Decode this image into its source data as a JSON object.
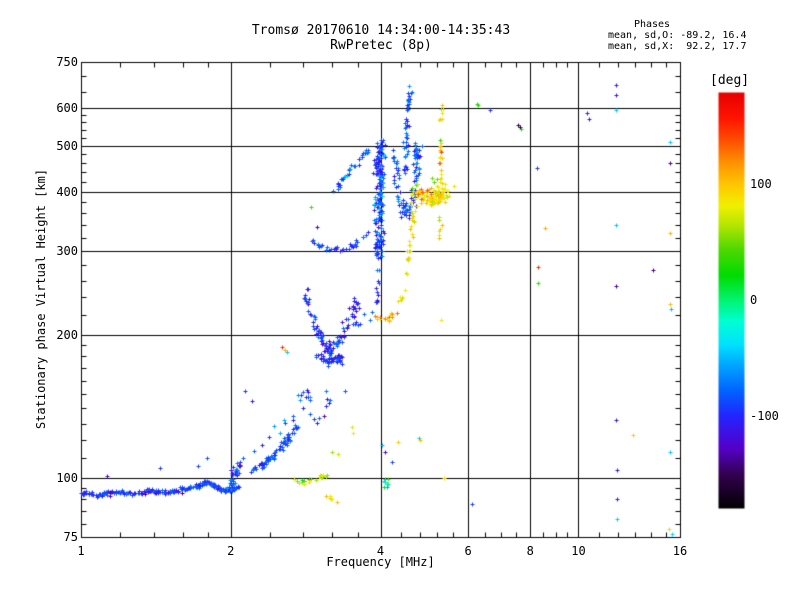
{
  "chart_data": {
    "type": "scatter",
    "title": "Tromsø 20170610 14:34:00-14:35:43",
    "subtitle": "RwPretec (8p)",
    "annotation": {
      "heading": "Phases",
      "o_stats": "mean, sd,O: -89.2, 16.4",
      "x_stats": "mean, sd,X:  92.2, 17.7"
    },
    "xlabel": "Frequency [MHz]",
    "ylabel": "Stationary phase Virtual Height [km]",
    "x_scale": "log",
    "y_scale": "log",
    "xlim": [
      1,
      16
    ],
    "ylim": [
      75,
      750
    ],
    "x_ticks": [
      1,
      2,
      4,
      6,
      8,
      10,
      16
    ],
    "x_minor_ticks": [
      1.2,
      1.4,
      1.6,
      1.8,
      2.4,
      2.8,
      3.2,
      3.6,
      4.4,
      4.8,
      5.2,
      5.6,
      6.5,
      7,
      7.5,
      8.5,
      9,
      9.5,
      11,
      12,
      13,
      14,
      15
    ],
    "y_ticks": [
      75,
      100,
      200,
      300,
      400,
      500,
      600,
      750
    ],
    "y_minor_ticks": [
      80,
      85,
      90,
      95,
      110,
      120,
      130,
      140,
      150,
      160,
      170,
      180,
      190,
      220,
      240,
      260,
      280,
      320,
      340,
      360,
      380,
      420,
      440,
      460,
      480,
      520,
      540,
      560,
      580,
      650,
      700
    ],
    "x_gridlines": [
      2,
      4,
      6,
      8,
      10
    ],
    "y_gridlines": [
      100,
      200,
      300,
      400,
      500,
      600
    ],
    "grid": true,
    "marker": "plus",
    "frame_color": "#000000",
    "colorbar": {
      "label": "[deg]",
      "min": -180,
      "max": 180,
      "ticks": [
        100,
        0,
        -100
      ],
      "stops": [
        [
          -180,
          "#000000"
        ],
        [
          -152,
          "#31004a"
        ],
        [
          -128,
          "#5600c8"
        ],
        [
          -100,
          "#2424ff"
        ],
        [
          -78,
          "#0064ff"
        ],
        [
          -56,
          "#00a6ff"
        ],
        [
          -38,
          "#00e2ff"
        ],
        [
          -18,
          "#00ffd2"
        ],
        [
          0,
          "#00f573"
        ],
        [
          22,
          "#00dc00"
        ],
        [
          45,
          "#52d800"
        ],
        [
          65,
          "#b4e600"
        ],
        [
          82,
          "#f0f000"
        ],
        [
          100,
          "#ffc800"
        ],
        [
          118,
          "#ff9600"
        ],
        [
          138,
          "#ff5000"
        ],
        [
          158,
          "#ff1400"
        ],
        [
          180,
          "#e80000"
        ]
      ]
    },
    "clusters": [
      {
        "name": "e-region-trace",
        "path": [
          [
            1.0,
            93
          ],
          [
            1.08,
            92
          ],
          [
            1.18,
            93.5
          ],
          [
            1.28,
            92.5
          ],
          [
            1.38,
            94
          ],
          [
            1.5,
            93
          ],
          [
            1.62,
            95
          ],
          [
            1.72,
            96
          ],
          [
            1.8,
            98.5
          ],
          [
            1.88,
            95
          ],
          [
            1.97,
            94
          ],
          [
            2.07,
            95.5
          ]
        ],
        "n": 270,
        "jf": 0.003,
        "jh": 0.004,
        "phase": [
          -108,
          -72
        ]
      },
      {
        "name": "e-trace-dark",
        "path": [
          [
            1.05,
            92.5
          ],
          [
            1.45,
            93
          ],
          [
            1.95,
            94.5
          ]
        ],
        "n": 10,
        "jf": 0.01,
        "jh": 0.005,
        "phase": [
          -145,
          -108
        ]
      },
      {
        "name": "f2-knot",
        "path": [
          [
            1.98,
            96
          ],
          [
            2.02,
            100
          ],
          [
            2.06,
            105
          ],
          [
            2.1,
            109
          ]
        ],
        "n": 38,
        "jf": 0.008,
        "jh": 0.015,
        "phase": [
          -122,
          -55
        ]
      },
      {
        "name": "es-ramp",
        "path": [
          [
            2.2,
            103
          ],
          [
            2.33,
            107
          ],
          [
            2.47,
            113
          ],
          [
            2.6,
            121
          ],
          [
            2.72,
            128
          ]
        ],
        "n": 75,
        "jf": 0.006,
        "jh": 0.007,
        "phase": [
          -105,
          -70
        ]
      },
      {
        "name": "ramp-halo",
        "path": [
          [
            2.22,
            112
          ],
          [
            2.45,
            124
          ],
          [
            2.68,
            140
          ],
          [
            2.85,
            152
          ]
        ],
        "n": 20,
        "jf": 0.015,
        "jh": 0.02,
        "phase": [
          -118,
          -52
        ]
      },
      {
        "name": "green-strip-100km",
        "path": [
          [
            2.6,
            99
          ],
          [
            2.8,
            98
          ],
          [
            3.0,
            100
          ],
          [
            3.12,
            101
          ]
        ],
        "n": 24,
        "jf": 0.01,
        "jh": 0.006,
        "phase": [
          15,
          95
        ]
      },
      {
        "name": "under-strip-warm",
        "path": [
          [
            3.1,
            93
          ],
          [
            3.22,
            89
          ],
          [
            3.35,
            85
          ]
        ],
        "n": 6,
        "jf": 0.006,
        "jh": 0.008,
        "phase": [
          75,
          115
        ]
      },
      {
        "name": "mid-sparse",
        "path": [
          [
            2.88,
            131
          ],
          [
            3.1,
            141
          ],
          [
            3.32,
            151
          ]
        ],
        "n": 11,
        "jf": 0.02,
        "jh": 0.025,
        "phase": [
          -130,
          -60
        ]
      },
      {
        "name": "v-left-edge",
        "path": [
          [
            2.8,
            248
          ],
          [
            2.88,
            226
          ],
          [
            2.97,
            206
          ],
          [
            3.07,
            192
          ],
          [
            3.16,
            183
          ]
        ],
        "n": 50,
        "jf": 0.008,
        "jh": 0.012,
        "phase": [
          -126,
          -70
        ]
      },
      {
        "name": "v-right-edge",
        "path": [
          [
            3.16,
            183
          ],
          [
            3.3,
            194
          ],
          [
            3.42,
            208
          ],
          [
            3.52,
            224
          ],
          [
            3.6,
            240
          ]
        ],
        "n": 50,
        "jf": 0.008,
        "jh": 0.012,
        "phase": [
          -126,
          -70
        ]
      },
      {
        "name": "v-bottom",
        "path": [
          [
            3.02,
            180
          ],
          [
            3.17,
            176
          ],
          [
            3.32,
            180
          ]
        ],
        "n": 42,
        "jf": 0.014,
        "jh": 0.012,
        "phase": [
          -120,
          -70
        ]
      },
      {
        "name": "arc-300km",
        "path": [
          [
            2.92,
            316
          ],
          [
            3.08,
            305
          ],
          [
            3.28,
            301
          ],
          [
            3.46,
            305
          ],
          [
            3.62,
            315
          ],
          [
            3.78,
            334
          ]
        ],
        "n": 36,
        "jf": 0.007,
        "jh": 0.006,
        "phase": [
          -112,
          -72
        ]
      },
      {
        "name": "below-arc",
        "path": [
          [
            3.52,
            210
          ],
          [
            3.68,
            215
          ],
          [
            3.85,
            222
          ]
        ],
        "n": 8,
        "jf": 0.012,
        "jh": 0.01,
        "phase": [
          -100,
          -70
        ]
      },
      {
        "name": "diag-chain",
        "path": [
          [
            3.18,
            400
          ],
          [
            3.3,
            415
          ],
          [
            3.44,
            438
          ],
          [
            3.57,
            458
          ],
          [
            3.69,
            477
          ],
          [
            3.77,
            490
          ]
        ],
        "n": 30,
        "jf": 0.005,
        "jh": 0.007,
        "phase": [
          -110,
          -68
        ]
      },
      {
        "name": "chain-cyan",
        "path": [
          [
            3.35,
            425
          ],
          [
            3.6,
            462
          ]
        ],
        "n": 4,
        "jf": 0.006,
        "jh": 0.008,
        "phase": [
          -60,
          -40
        ]
      },
      {
        "name": "o-column-main",
        "path": [
          [
            3.96,
            290
          ],
          [
            3.96,
            325
          ],
          [
            3.97,
            362
          ],
          [
            3.98,
            400
          ],
          [
            3.98,
            440
          ],
          [
            3.99,
            472
          ],
          [
            4.0,
            505
          ]
        ],
        "n": 175,
        "jf": 0.01,
        "jh": 0.012,
        "phase": [
          -118,
          -62
        ]
      },
      {
        "name": "o-column-cyan",
        "path": [
          [
            3.97,
            320
          ],
          [
            3.98,
            400
          ],
          [
            3.99,
            480
          ]
        ],
        "n": 12,
        "jf": 0.009,
        "jh": 0.012,
        "phase": [
          -60,
          -36
        ]
      },
      {
        "name": "o-column-below",
        "path": [
          [
            3.93,
            230
          ],
          [
            3.95,
            255
          ],
          [
            3.96,
            280
          ]
        ],
        "n": 13,
        "jf": 0.006,
        "jh": 0.012,
        "phase": [
          -136,
          -70
        ]
      },
      {
        "name": "o-lobe-u",
        "path": [
          [
            4.28,
            488
          ],
          [
            4.31,
            440
          ],
          [
            4.35,
            402
          ],
          [
            4.41,
            373
          ],
          [
            4.49,
            358
          ],
          [
            4.58,
            368
          ],
          [
            4.66,
            394
          ],
          [
            4.72,
            432
          ],
          [
            4.75,
            475
          ],
          [
            4.76,
            496
          ]
        ],
        "n": 95,
        "jf": 0.008,
        "jh": 0.012,
        "phase": [
          -115,
          -60
        ]
      },
      {
        "name": "o-upper-column",
        "path": [
          [
            4.46,
            438
          ],
          [
            4.49,
            478
          ],
          [
            4.51,
            520
          ],
          [
            4.53,
            562
          ],
          [
            4.55,
            602
          ],
          [
            4.56,
            638
          ],
          [
            4.57,
            658
          ]
        ],
        "n": 46,
        "jf": 0.005,
        "jh": 0.008,
        "phase": [
          -112,
          -58
        ]
      },
      {
        "name": "x-hook",
        "path": [
          [
            3.87,
            222
          ],
          [
            3.95,
            217
          ],
          [
            4.05,
            215
          ],
          [
            4.15,
            216
          ],
          [
            4.25,
            220
          ],
          [
            4.33,
            226
          ]
        ],
        "n": 16,
        "jf": 0.006,
        "jh": 0.006,
        "phase": [
          80,
          132
        ]
      },
      {
        "name": "x-rise",
        "path": [
          [
            4.37,
            232
          ],
          [
            4.45,
            250
          ],
          [
            4.52,
            275
          ],
          [
            4.57,
            305
          ],
          [
            4.61,
            340
          ],
          [
            4.65,
            360
          ]
        ],
        "n": 30,
        "jf": 0.004,
        "jh": 0.008,
        "phase": [
          62,
          108
        ]
      },
      {
        "name": "x-vertical",
        "path": [
          [
            5.25,
            300
          ],
          [
            5.26,
            355
          ],
          [
            5.27,
            415
          ],
          [
            5.28,
            468
          ],
          [
            5.29,
            520
          ],
          [
            5.3,
            565
          ],
          [
            5.31,
            605
          ]
        ],
        "n": 34,
        "jf": 0.004,
        "jh": 0.01,
        "phase": [
          58,
          112
        ]
      },
      {
        "name": "x-vertical-hot",
        "path": [
          [
            5.27,
            455
          ],
          [
            5.28,
            482
          ]
        ],
        "n": 3,
        "jf": 0.004,
        "jh": 0.006,
        "phase": [
          120,
          148
        ]
      },
      {
        "name": "x-blob",
        "path": [
          [
            4.68,
            385
          ],
          [
            4.82,
            396
          ],
          [
            4.98,
            390
          ],
          [
            5.12,
            386
          ],
          [
            5.25,
            396
          ],
          [
            5.38,
            402
          ]
        ],
        "n": 105,
        "jf": 0.013,
        "jh": 0.02,
        "phase": [
          66,
          112
        ]
      },
      {
        "name": "x-blob-hot",
        "path": [
          [
            4.72,
            392
          ],
          [
            4.95,
            408
          ],
          [
            5.15,
            398
          ]
        ],
        "n": 6,
        "jf": 0.012,
        "jh": 0.015,
        "phase": [
          118,
          152
        ]
      },
      {
        "name": "x-blob-green",
        "path": [
          [
            4.64,
            416
          ],
          [
            4.9,
            420
          ],
          [
            5.24,
            428
          ]
        ],
        "n": 5,
        "jf": 0.01,
        "jh": 0.012,
        "phase": [
          25,
          55
        ]
      },
      {
        "name": "f4-bottom-knot",
        "path": [
          [
            4.05,
            96
          ],
          [
            4.1,
            98
          ],
          [
            4.16,
            97
          ]
        ],
        "n": 10,
        "jf": 0.008,
        "jh": 0.01,
        "phase": [
          -70,
          55
        ]
      }
    ],
    "points": [
      [
        1.13,
        101,
        -130
      ],
      [
        1.44,
        105,
        -95
      ],
      [
        1.72,
        106,
        -90
      ],
      [
        1.79,
        110,
        -85
      ],
      [
        2.14,
        152,
        -95
      ],
      [
        2.21,
        145,
        -105
      ],
      [
        2.54,
        188,
        150
      ],
      [
        2.57,
        186,
        110
      ],
      [
        2.6,
        184,
        -45
      ],
      [
        2.9,
        372,
        40
      ],
      [
        2.98,
        337,
        -135
      ],
      [
        3.2,
        113,
        60
      ],
      [
        3.28,
        112,
        70
      ],
      [
        3.5,
        128,
        75
      ],
      [
        3.52,
        124,
        85
      ],
      [
        4.03,
        117,
        -50
      ],
      [
        4.08,
        113,
        -125
      ],
      [
        4.22,
        108,
        -90
      ],
      [
        4.34,
        119,
        100
      ],
      [
        4.77,
        121,
        -45
      ],
      [
        4.81,
        120,
        105
      ],
      [
        5.37,
        100,
        95
      ],
      [
        5.3,
        215,
        85
      ],
      [
        5.27,
        513,
        35
      ],
      [
        6.1,
        88,
        -90
      ],
      [
        6.26,
        613,
        35
      ],
      [
        6.28,
        610,
        30
      ],
      [
        6.65,
        593,
        -95
      ],
      [
        7.55,
        552,
        -150
      ],
      [
        7.62,
        547,
        -165
      ],
      [
        7.68,
        542,
        28
      ],
      [
        8.26,
        448,
        -95
      ],
      [
        8.3,
        277,
        148
      ],
      [
        8.3,
        257,
        35
      ],
      [
        8.57,
        335,
        110
      ],
      [
        10.4,
        587,
        -100
      ],
      [
        10.5,
        570,
        -110
      ],
      [
        11.9,
        671,
        -100
      ],
      [
        11.9,
        640,
        -115
      ],
      [
        11.9,
        593,
        -45
      ],
      [
        11.9,
        340,
        -48
      ],
      [
        11.9,
        253,
        -135
      ],
      [
        11.9,
        132,
        -115
      ],
      [
        11.95,
        104,
        -110
      ],
      [
        11.95,
        90,
        -110
      ],
      [
        11.95,
        82,
        -45
      ],
      [
        12.9,
        123,
        100
      ],
      [
        14.1,
        274,
        -140
      ],
      [
        15.3,
        508,
        -45
      ],
      [
        15.3,
        459,
        -140
      ],
      [
        15.3,
        327,
        108
      ],
      [
        15.3,
        232,
        105
      ],
      [
        15.35,
        227,
        -50
      ],
      [
        15.3,
        113,
        -45
      ],
      [
        15.2,
        78,
        95
      ],
      [
        15.4,
        76,
        -40
      ]
    ]
  }
}
